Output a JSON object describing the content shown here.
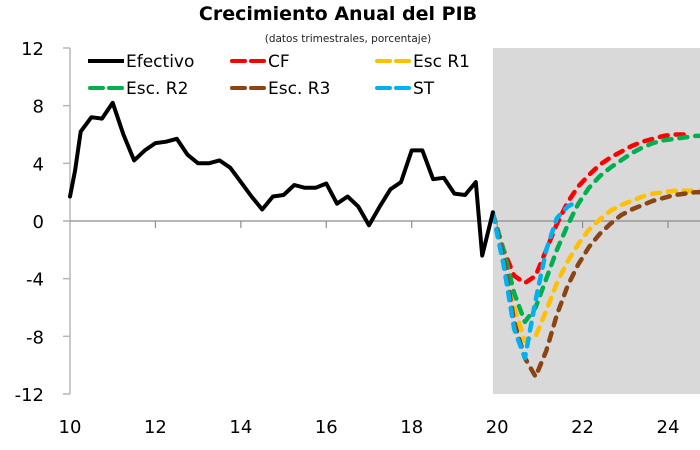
{
  "chart_data": {
    "type": "line",
    "title": "Crecimiento Anual del PIB",
    "subtitle": "(datos trimestrales, porcentaje)",
    "xlabel": "",
    "ylabel": "",
    "xlim": [
      10,
      25
    ],
    "ylim": [
      -12,
      12
    ],
    "x_ticks": [
      10,
      12,
      14,
      16,
      18,
      20,
      22,
      24
    ],
    "x_tick_labels": [
      "10",
      "12",
      "14",
      "16",
      "18",
      "20",
      "22",
      "24"
    ],
    "y_ticks": [
      12,
      8,
      4,
      0,
      -4,
      -8,
      -12
    ],
    "y_tick_labels": [
      "12",
      "8",
      "4",
      "0",
      "-4",
      "-8",
      "-12"
    ],
    "grid": false,
    "projection_shading": {
      "from_x": 19.9,
      "to_x": 25,
      "color": "#d9d9d9"
    },
    "legend": {
      "placement": "top",
      "columns": 3
    },
    "series": [
      {
        "name": "Efectivo",
        "color": "#000000",
        "style": "solid",
        "x": [
          10.0,
          10.12,
          10.25,
          10.5,
          10.75,
          11.0,
          11.25,
          11.5,
          11.75,
          12.0,
          12.25,
          12.5,
          12.75,
          13.0,
          13.25,
          13.5,
          13.75,
          14.0,
          14.25,
          14.5,
          14.75,
          15.0,
          15.25,
          15.5,
          15.75,
          16.0,
          16.25,
          16.5,
          16.75,
          17.0,
          17.25,
          17.5,
          17.75,
          18.0,
          18.25,
          18.5,
          18.75,
          19.0,
          19.25,
          19.5,
          19.65,
          19.9
        ],
        "y": [
          1.7,
          3.5,
          6.2,
          7.2,
          7.1,
          8.2,
          6.0,
          4.2,
          4.9,
          5.4,
          5.5,
          5.7,
          4.6,
          4.0,
          4.0,
          4.2,
          3.7,
          2.7,
          1.7,
          0.8,
          1.7,
          1.8,
          2.5,
          2.3,
          2.3,
          2.6,
          1.2,
          1.7,
          1.0,
          -0.3,
          1.0,
          2.2,
          2.7,
          4.9,
          4.9,
          2.9,
          3.0,
          1.9,
          1.8,
          2.7,
          -2.4,
          0.6
        ]
      },
      {
        "name": "CF",
        "color": "#ff0000",
        "style": "dashed",
        "x": [
          19.9,
          20.15,
          20.4,
          20.65,
          20.9,
          21.15,
          21.4,
          21.65,
          21.9,
          22.15,
          22.4,
          22.65,
          22.9,
          23.15,
          23.4,
          23.65,
          23.9,
          24.15,
          24.4
        ],
        "y": [
          0.5,
          -2.0,
          -3.8,
          -4.3,
          -3.8,
          -2.0,
          -0.2,
          1.3,
          2.4,
          3.2,
          3.9,
          4.4,
          4.8,
          5.2,
          5.5,
          5.7,
          5.9,
          6.0,
          6.0
        ]
      },
      {
        "name": "Esc R1",
        "color": "#ffc000",
        "style": "dashed",
        "x": [
          19.9,
          20.15,
          20.4,
          20.65,
          20.9,
          21.15,
          21.4,
          21.65,
          21.9,
          22.15,
          22.4,
          22.65,
          22.9,
          23.15,
          23.4,
          23.65,
          23.9,
          24.15,
          24.4,
          24.65,
          24.9
        ],
        "y": [
          0.5,
          -2.5,
          -6.0,
          -8.3,
          -8.0,
          -6.2,
          -4.3,
          -2.8,
          -1.6,
          -0.6,
          0.1,
          0.7,
          1.1,
          1.4,
          1.7,
          1.9,
          2.0,
          2.1,
          2.1,
          2.1,
          2.1
        ]
      },
      {
        "name": "Esc. R2",
        "color": "#00b050",
        "style": "dashed",
        "x": [
          19.9,
          20.15,
          20.4,
          20.65,
          20.9,
          21.15,
          21.4,
          21.65,
          21.9,
          22.15,
          22.4,
          22.65,
          22.9,
          23.15,
          23.4,
          23.65,
          23.9,
          24.15,
          24.4,
          24.65,
          24.9
        ],
        "y": [
          0.5,
          -2.0,
          -5.0,
          -7.0,
          -6.0,
          -4.0,
          -2.0,
          -0.3,
          1.2,
          2.3,
          3.1,
          3.7,
          4.2,
          4.7,
          5.1,
          5.4,
          5.6,
          5.7,
          5.8,
          5.9,
          5.9
        ]
      },
      {
        "name": "Esc. R3",
        "color": "#8b4513",
        "style": "dashed",
        "x": [
          19.9,
          20.15,
          20.4,
          20.65,
          20.9,
          21.15,
          21.4,
          21.65,
          21.9,
          22.15,
          22.4,
          22.65,
          22.9,
          23.15,
          23.4,
          23.65,
          23.9,
          24.15,
          24.4,
          24.65,
          24.9
        ],
        "y": [
          0.5,
          -2.5,
          -7.0,
          -9.5,
          -10.8,
          -9.0,
          -6.5,
          -4.5,
          -3.0,
          -1.8,
          -0.9,
          -0.2,
          0.4,
          0.8,
          1.1,
          1.4,
          1.6,
          1.8,
          1.9,
          2.0,
          2.0
        ]
      },
      {
        "name": "ST",
        "color": "#00b0f0",
        "style": "dashed",
        "x": [
          19.9,
          20.15,
          20.4,
          20.65,
          20.9,
          21.15,
          21.4,
          21.65,
          21.9
        ],
        "y": [
          0.5,
          -3.0,
          -7.5,
          -9.5,
          -5.5,
          -2.0,
          0.2,
          1.0,
          1.4
        ]
      }
    ]
  }
}
